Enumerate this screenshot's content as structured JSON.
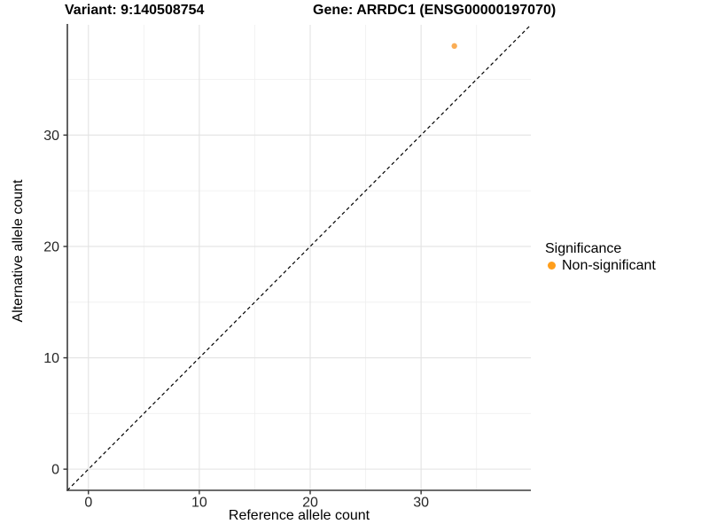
{
  "titles": {
    "variant": "Variant: 9:140508754",
    "gene": "Gene: ARRDC1 (ENSG00000197070)"
  },
  "chart_data": {
    "type": "scatter",
    "xlabel": "Reference allele count",
    "ylabel": "Alternative allele count",
    "xlim": [
      -1.9,
      39.9
    ],
    "ylim": [
      -1.9,
      39.9
    ],
    "xticks": [
      0,
      10,
      20,
      30
    ],
    "yticks": [
      0,
      10,
      20,
      30
    ],
    "xticks_minor": [
      5,
      15,
      25,
      35
    ],
    "yticks_minor": [
      5,
      15,
      25,
      35
    ],
    "grid": "major+minor",
    "points": [
      {
        "x": 33,
        "y": 38,
        "series": "Non-significant"
      }
    ],
    "point_color": "#F9A443",
    "point_opacity": 0.9,
    "reference_line": {
      "type": "identity",
      "equation": "y = x",
      "style": "dashed",
      "color": "#000000"
    },
    "legend": {
      "title": "Significance",
      "position": "right",
      "items": [
        {
          "label": "Non-significant",
          "color": "#FF9E1B"
        }
      ]
    },
    "style": {
      "major_grid_color": "#E3E3E3",
      "minor_grid_color": "#F0F0F0",
      "axis_line_color": "#3B3B3B",
      "tick_color": "#333333",
      "panel_background": "#FFFFFF"
    }
  }
}
